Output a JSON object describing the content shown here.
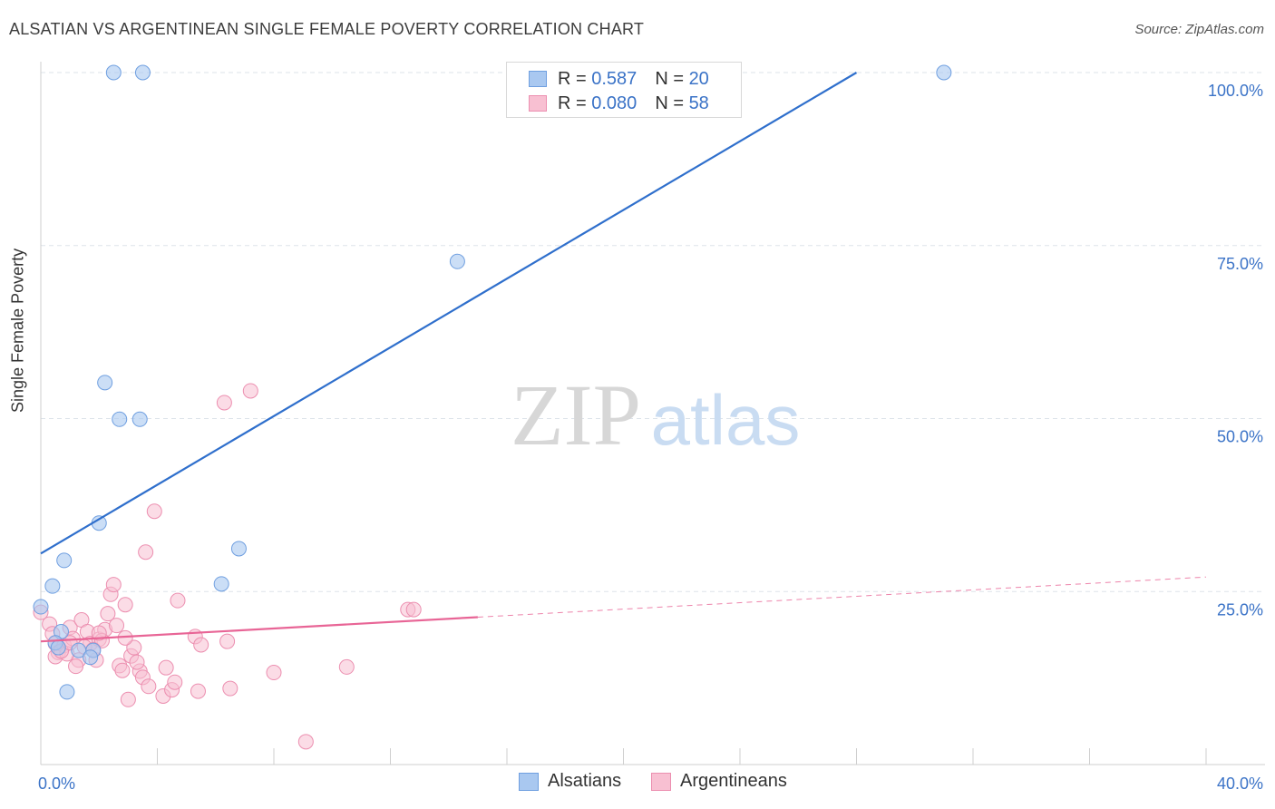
{
  "title": "ALSATIAN VS ARGENTINEAN SINGLE FEMALE POVERTY CORRELATION CHART",
  "source": "Source: ZipAtlas.com",
  "watermark": {
    "zip": "ZIP",
    "atlas": "atlas"
  },
  "legend": {
    "rows": [
      {
        "r_label": "R =",
        "r_value": "0.587",
        "n_label": "N =",
        "n_value": "20",
        "color": "#a9c8f0",
        "border": "#6f9fe0"
      },
      {
        "r_label": "R =",
        "r_value": "0.080",
        "n_label": "N =",
        "n_value": "58",
        "color": "#f8c0d2",
        "border": "#ec8fb0"
      }
    ]
  },
  "bottom_legend": {
    "alsatians": "Alsatians",
    "argentineans": "Argentineans"
  },
  "colors": {
    "alsatian_fill": "#a9c8f0",
    "alsatian_stroke": "#6f9fe0",
    "alsatian_line": "#2f6fcc",
    "argentinean_fill": "#f8c0d2",
    "argentinean_stroke": "#ec8fb0",
    "argentinean_line": "#e86596",
    "axis_text": "#3b73c7",
    "grid": "#dde3ea"
  },
  "chart_data": {
    "type": "scatter",
    "title": "ALSATIAN VS ARGENTINEAN SINGLE FEMALE POVERTY CORRELATION CHART",
    "xlabel": "",
    "ylabel": "Single Female Poverty",
    "xlim": [
      0,
      40
    ],
    "ylim": [
      0,
      100
    ],
    "x_tick_labels": [
      "0.0%",
      "40.0%"
    ],
    "y_ticks": [
      25,
      50,
      75,
      100
    ],
    "y_tick_labels": [
      "25.0%",
      "50.0%",
      "75.0%",
      "100.0%"
    ],
    "series": [
      {
        "name": "Alsatians",
        "r": 0.587,
        "n": 20,
        "trend": {
          "x0": 0,
          "y0": 30.5,
          "x1": 28,
          "y1": 100
        },
        "points": [
          {
            "x": 2.5,
            "y": 100
          },
          {
            "x": 3.5,
            "y": 100
          },
          {
            "x": 31.0,
            "y": 100
          },
          {
            "x": 14.3,
            "y": 72.7
          },
          {
            "x": 2.2,
            "y": 55.2
          },
          {
            "x": 2.7,
            "y": 49.9
          },
          {
            "x": 3.4,
            "y": 49.9
          },
          {
            "x": 2.0,
            "y": 34.9
          },
          {
            "x": 6.8,
            "y": 31.2
          },
          {
            "x": 0.8,
            "y": 29.5
          },
          {
            "x": 6.2,
            "y": 26.1
          },
          {
            "x": 0.4,
            "y": 25.8
          },
          {
            "x": 0.0,
            "y": 22.8
          },
          {
            "x": 0.7,
            "y": 19.2
          },
          {
            "x": 0.5,
            "y": 17.6
          },
          {
            "x": 1.3,
            "y": 16.5
          },
          {
            "x": 1.8,
            "y": 16.5
          },
          {
            "x": 1.7,
            "y": 15.5
          },
          {
            "x": 0.6,
            "y": 16.9
          },
          {
            "x": 0.9,
            "y": 10.5
          }
        ]
      },
      {
        "name": "Argentineans",
        "r": 0.08,
        "n": 58,
        "trend": {
          "x0": 0,
          "y0": 17.8,
          "x1": 15,
          "y1": 21.3,
          "dash_to_x": 40,
          "dash_to_y": 27.1
        },
        "points": [
          {
            "x": 0.0,
            "y": 22.0
          },
          {
            "x": 0.3,
            "y": 20.3
          },
          {
            "x": 0.5,
            "y": 17.5
          },
          {
            "x": 0.6,
            "y": 16.2
          },
          {
            "x": 0.5,
            "y": 15.6
          },
          {
            "x": 0.8,
            "y": 17.2
          },
          {
            "x": 1.0,
            "y": 19.8
          },
          {
            "x": 1.1,
            "y": 18.2
          },
          {
            "x": 1.3,
            "y": 15.1
          },
          {
            "x": 1.2,
            "y": 14.2
          },
          {
            "x": 1.4,
            "y": 20.9
          },
          {
            "x": 1.6,
            "y": 19.2
          },
          {
            "x": 1.7,
            "y": 17.5
          },
          {
            "x": 1.9,
            "y": 15.1
          },
          {
            "x": 2.0,
            "y": 18.1
          },
          {
            "x": 2.2,
            "y": 19.5
          },
          {
            "x": 2.3,
            "y": 21.8
          },
          {
            "x": 2.4,
            "y": 24.6
          },
          {
            "x": 2.5,
            "y": 26.0
          },
          {
            "x": 2.6,
            "y": 20.1
          },
          {
            "x": 2.7,
            "y": 14.3
          },
          {
            "x": 2.8,
            "y": 13.6
          },
          {
            "x": 2.9,
            "y": 23.1
          },
          {
            "x": 3.0,
            "y": 9.4
          },
          {
            "x": 3.1,
            "y": 15.7
          },
          {
            "x": 3.2,
            "y": 16.9
          },
          {
            "x": 3.4,
            "y": 13.5
          },
          {
            "x": 3.5,
            "y": 12.6
          },
          {
            "x": 3.6,
            "y": 30.7
          },
          {
            "x": 3.7,
            "y": 11.3
          },
          {
            "x": 3.9,
            "y": 36.6
          },
          {
            "x": 4.2,
            "y": 9.9
          },
          {
            "x": 4.3,
            "y": 14.0
          },
          {
            "x": 4.5,
            "y": 10.8
          },
          {
            "x": 4.6,
            "y": 11.9
          },
          {
            "x": 4.7,
            "y": 23.7
          },
          {
            "x": 5.3,
            "y": 18.5
          },
          {
            "x": 5.4,
            "y": 10.6
          },
          {
            "x": 5.5,
            "y": 17.3
          },
          {
            "x": 6.3,
            "y": 52.3
          },
          {
            "x": 6.5,
            "y": 11.0
          },
          {
            "x": 7.2,
            "y": 54.0
          },
          {
            "x": 8.0,
            "y": 13.3
          },
          {
            "x": 9.1,
            "y": 3.3
          },
          {
            "x": 10.5,
            "y": 14.1
          },
          {
            "x": 12.6,
            "y": 22.4
          },
          {
            "x": 12.8,
            "y": 22.4
          },
          {
            "x": 2.1,
            "y": 17.9
          },
          {
            "x": 1.5,
            "y": 17.0
          },
          {
            "x": 0.9,
            "y": 16.0
          },
          {
            "x": 6.4,
            "y": 17.8
          },
          {
            "x": 2.0,
            "y": 19.0
          },
          {
            "x": 1.8,
            "y": 16.6
          },
          {
            "x": 0.4,
            "y": 18.9
          },
          {
            "x": 2.9,
            "y": 18.3
          },
          {
            "x": 3.3,
            "y": 14.8
          },
          {
            "x": 0.7,
            "y": 16.4
          },
          {
            "x": 1.0,
            "y": 17.6
          }
        ]
      }
    ]
  }
}
